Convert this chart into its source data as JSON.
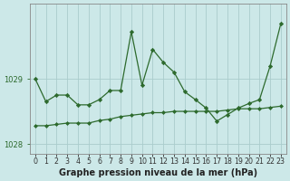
{
  "title": "Graphe pression niveau de la mer (hPa)",
  "bg_color": "#cce8e8",
  "grid_color": "#aacccc",
  "line_color": "#2d6a2d",
  "marker_color": "#2d6a2d",
  "series1": {
    "x": [
      0,
      1,
      2,
      3,
      4,
      5,
      6,
      7,
      8,
      9,
      10,
      11,
      12,
      13,
      14,
      15,
      16,
      17,
      18,
      19,
      20,
      21,
      22,
      23
    ],
    "y": [
      1029.0,
      1028.65,
      1028.75,
      1028.75,
      1028.6,
      1028.6,
      1028.68,
      1028.82,
      1028.82,
      1029.72,
      1028.9,
      1029.45,
      1029.25,
      1029.1,
      1028.8,
      1028.68,
      1028.55,
      1028.35,
      1028.45,
      1028.55,
      1028.62,
      1028.68,
      1029.2,
      1029.85
    ]
  },
  "series2": {
    "x": [
      0,
      1,
      2,
      3,
      4,
      5,
      6,
      7,
      8,
      9,
      10,
      11,
      12,
      13,
      14,
      15,
      16,
      17,
      18,
      19,
      20,
      21,
      22,
      23
    ],
    "y": [
      1028.28,
      1028.28,
      1028.3,
      1028.32,
      1028.32,
      1028.32,
      1028.36,
      1028.38,
      1028.42,
      1028.44,
      1028.46,
      1028.48,
      1028.48,
      1028.5,
      1028.5,
      1028.5,
      1028.5,
      1028.5,
      1028.52,
      1028.54,
      1028.54,
      1028.54,
      1028.56,
      1028.58
    ]
  },
  "yticks": [
    1028,
    1029
  ],
  "ylim": [
    1027.85,
    1030.15
  ],
  "xlim": [
    -0.5,
    23.5
  ],
  "tick_fontsize": 6.0,
  "title_fontsize": 7.0
}
